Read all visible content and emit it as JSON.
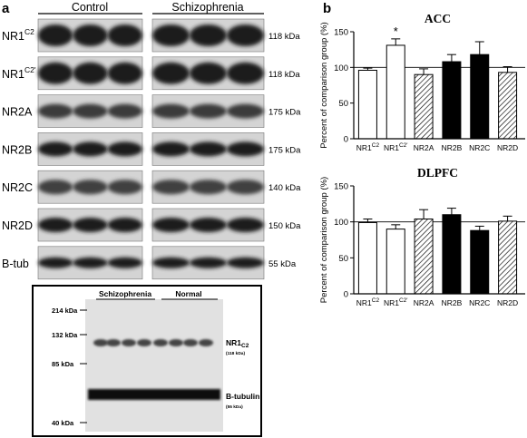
{
  "panel_a": {
    "letter": "a",
    "group_control": "Control",
    "group_schizophrenia": "Schizophrenia",
    "rows": [
      {
        "name": "NR1",
        "sup": "C2",
        "kda": "118 kDa"
      },
      {
        "name": "NR1",
        "sup": "C2'",
        "kda": "118 kDa"
      },
      {
        "name": "NR2A",
        "sup": "",
        "kda": "175 kDa"
      },
      {
        "name": "NR2B",
        "sup": "",
        "kda": "175 kDa"
      },
      {
        "name": "NR2C",
        "sup": "",
        "kda": "140 kDa"
      },
      {
        "name": "NR2D",
        "sup": "",
        "kda": "150 kDa"
      },
      {
        "name": "B-tub",
        "sup": "",
        "kda": "55 kDa"
      }
    ],
    "inset": {
      "group_schizophrenia": "Schizophrenia",
      "group_normal": "Normal",
      "markers": [
        "214 kDa",
        "132 kDa",
        "85 kDa",
        "40 kDa"
      ],
      "band1_name": "NR1",
      "band1_sub": "C2",
      "band1_size": "(118 kDa)",
      "band2_name": "B-tubulin",
      "band2_size": "(55 kDa)"
    }
  },
  "panel_b": {
    "letter": "b",
    "ylabel": "Percent of comparison group (%)",
    "categories": [
      {
        "name": "NR1",
        "sup": "C2"
      },
      {
        "name": "NR1",
        "sup": "C2'"
      },
      {
        "name": "NR2A",
        "sup": ""
      },
      {
        "name": "NR2B",
        "sup": ""
      },
      {
        "name": "NR2C",
        "sup": ""
      },
      {
        "name": "NR2D",
        "sup": ""
      }
    ]
  },
  "chart_data": [
    {
      "type": "bar",
      "title": "ACC",
      "ylabel": "Percent of comparison group (%)",
      "ylim": [
        0,
        150
      ],
      "yticks": [
        0,
        50,
        100,
        150
      ],
      "reference_line": 100,
      "categories": [
        "NR1C2",
        "NR1C2'",
        "NR2A",
        "NR2B",
        "NR2C",
        "NR2D"
      ],
      "values": [
        96,
        131,
        90,
        108,
        118,
        93
      ],
      "errors": [
        3,
        9,
        8,
        10,
        18,
        8
      ],
      "fills": [
        "white",
        "white",
        "hatched",
        "black",
        "black",
        "hatched"
      ],
      "annotations": [
        {
          "category": "NR1C2'",
          "text": "*"
        }
      ]
    },
    {
      "type": "bar",
      "title": "DLPFC",
      "ylabel": "Percent of comparison group (%)",
      "ylim": [
        0,
        150
      ],
      "yticks": [
        0,
        50,
        100,
        150
      ],
      "reference_line": 100,
      "categories": [
        "NR1C2",
        "NR1C2'",
        "NR2A",
        "NR2B",
        "NR2C",
        "NR2D"
      ],
      "values": [
        99,
        90,
        104,
        110,
        88,
        101
      ],
      "errors": [
        5,
        6,
        13,
        9,
        6,
        7
      ],
      "fills": [
        "white",
        "white",
        "hatched",
        "black",
        "black",
        "hatched"
      ],
      "annotations": []
    }
  ]
}
